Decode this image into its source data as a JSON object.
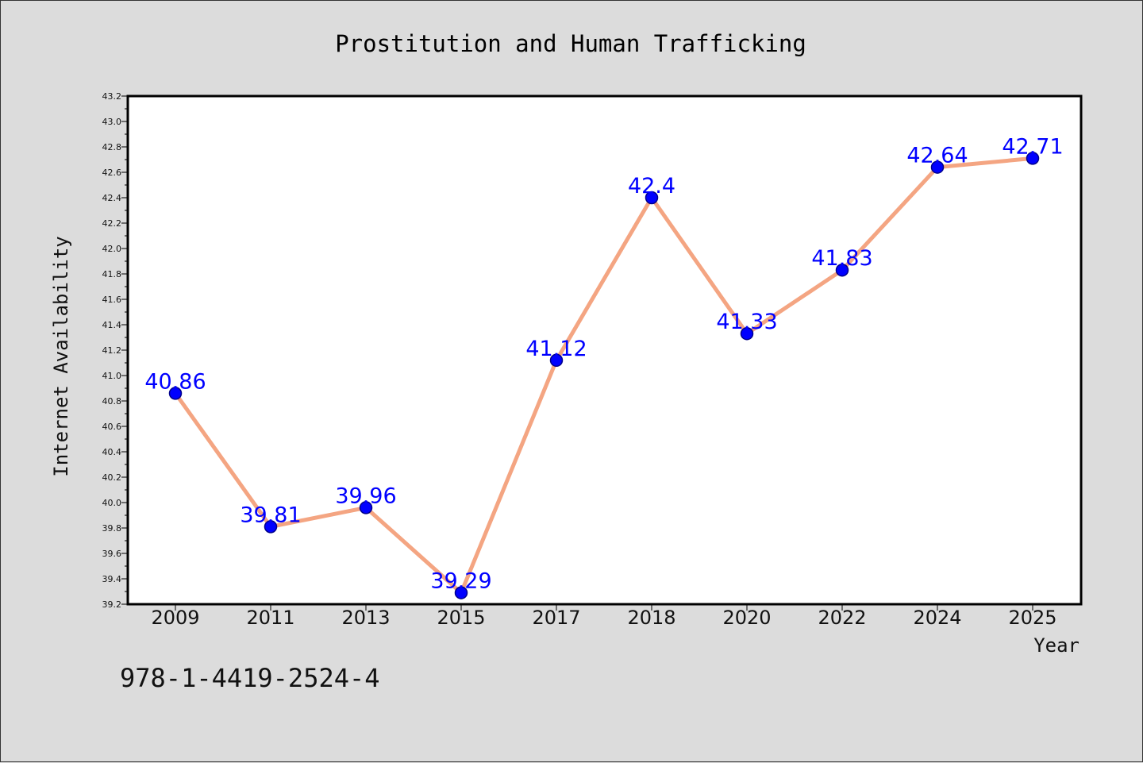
{
  "chart_data": {
    "type": "line",
    "title": "Prostitution and Human Trafficking",
    "xlabel": "Year",
    "ylabel": "Internet Availability",
    "categories": [
      "2009",
      "2011",
      "2013",
      "2015",
      "2017",
      "2018",
      "2020",
      "2022",
      "2024",
      "2025"
    ],
    "series": [
      {
        "values": [
          40.86,
          39.81,
          39.96,
          39.29,
          41.12,
          42.4,
          41.33,
          41.83,
          42.64,
          42.71
        ],
        "data_labels": [
          "40.86",
          "39.81",
          "39.96",
          "39.29",
          "41.12",
          "42.4",
          "41.33",
          "41.83",
          "42.64",
          "42.71"
        ]
      }
    ],
    "ylim": [
      39.2,
      43.2
    ],
    "yticks": [
      "39.2",
      "39.4",
      "39.6",
      "39.8",
      "40.0",
      "40.2",
      "40.4",
      "40.6",
      "40.8",
      "41.0",
      "41.2",
      "41.4",
      "41.6",
      "41.8",
      "42.0",
      "42.2",
      "42.4",
      "42.6",
      "42.8",
      "43.0",
      "43.2"
    ],
    "grid": false,
    "legend": "none",
    "colors": {
      "line": "#f4a582",
      "marker": "#0000ff",
      "marker_edge": "#00008b",
      "data_label": "#0000ff",
      "plot_bg": "#ffffff",
      "page_bg": "#dcdcdc"
    }
  },
  "footer": {
    "text": "978-1-4419-2524-4"
  }
}
